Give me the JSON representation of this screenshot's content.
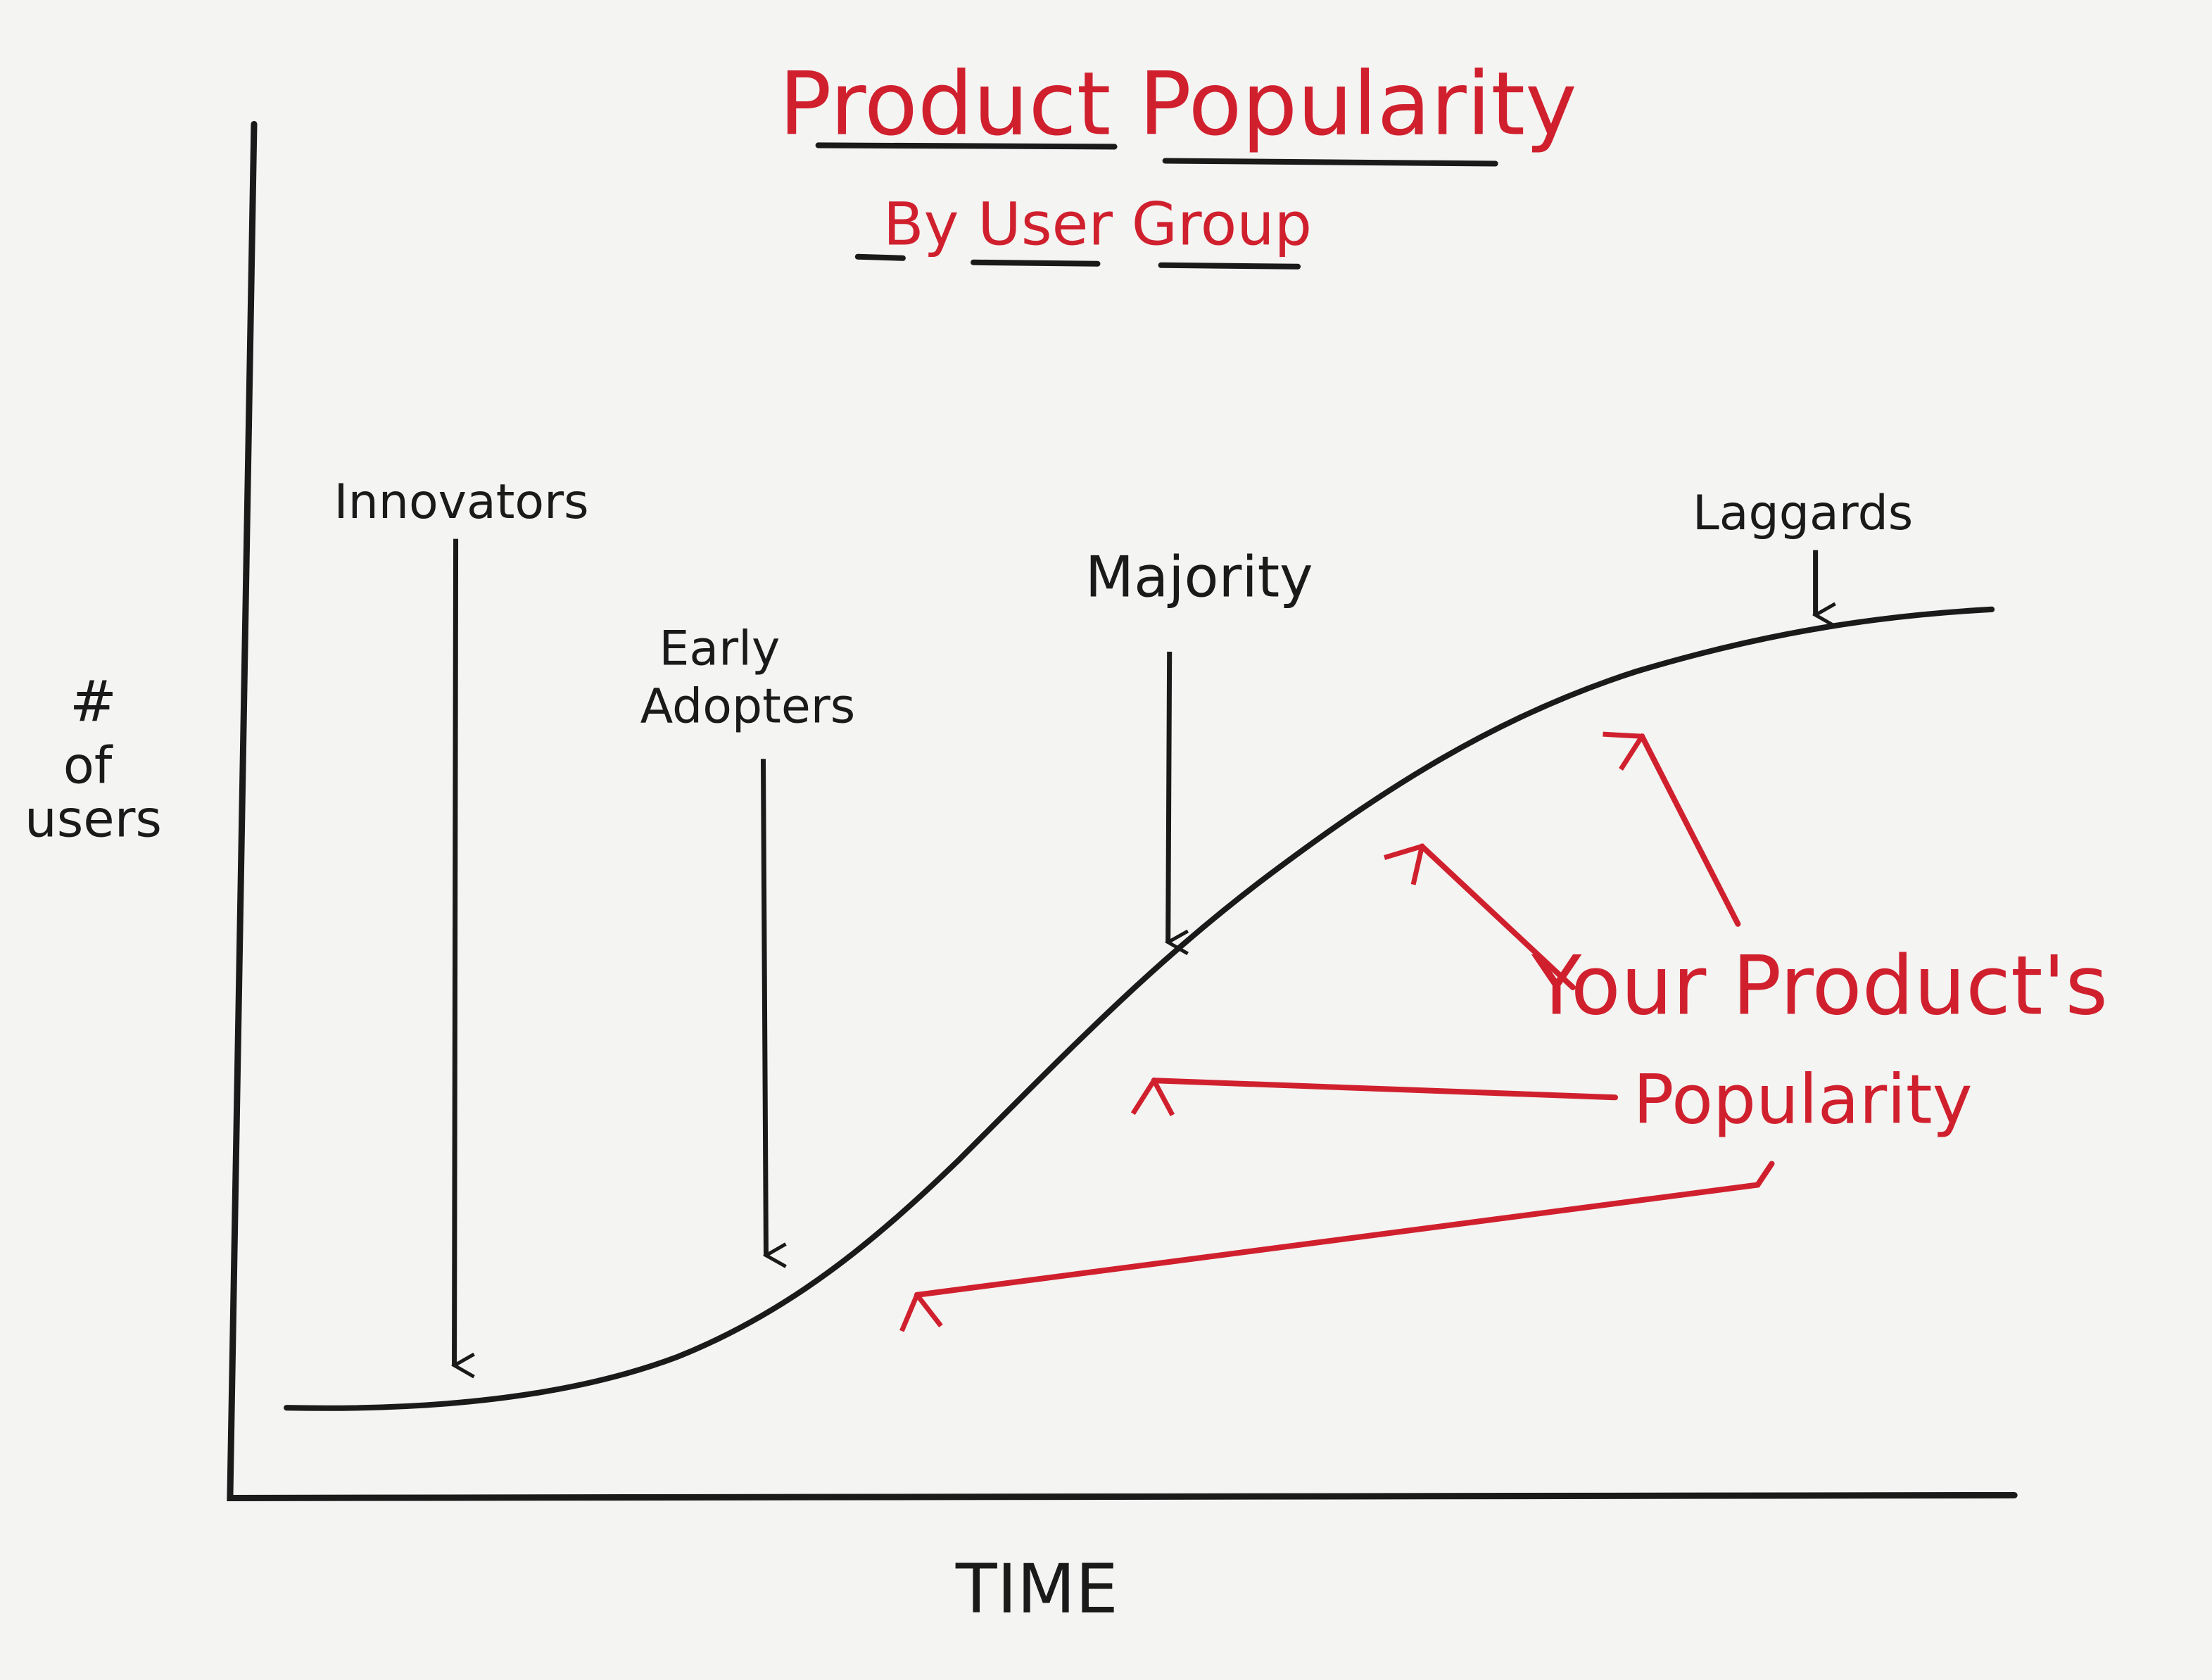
{
  "title": "Product Popularity",
  "subtitle": "By User Group",
  "y_label": [
    "#",
    "of",
    "users"
  ],
  "x_label": "TIME",
  "stages": [
    {
      "lines": [
        "Innovators"
      ]
    },
    {
      "lines": [
        "Early",
        "Adopters"
      ]
    },
    {
      "lines": [
        "Majority"
      ]
    },
    {
      "lines": [
        "Laggards"
      ]
    }
  ],
  "callout": [
    "Your Product's",
    "Popularity"
  ]
}
